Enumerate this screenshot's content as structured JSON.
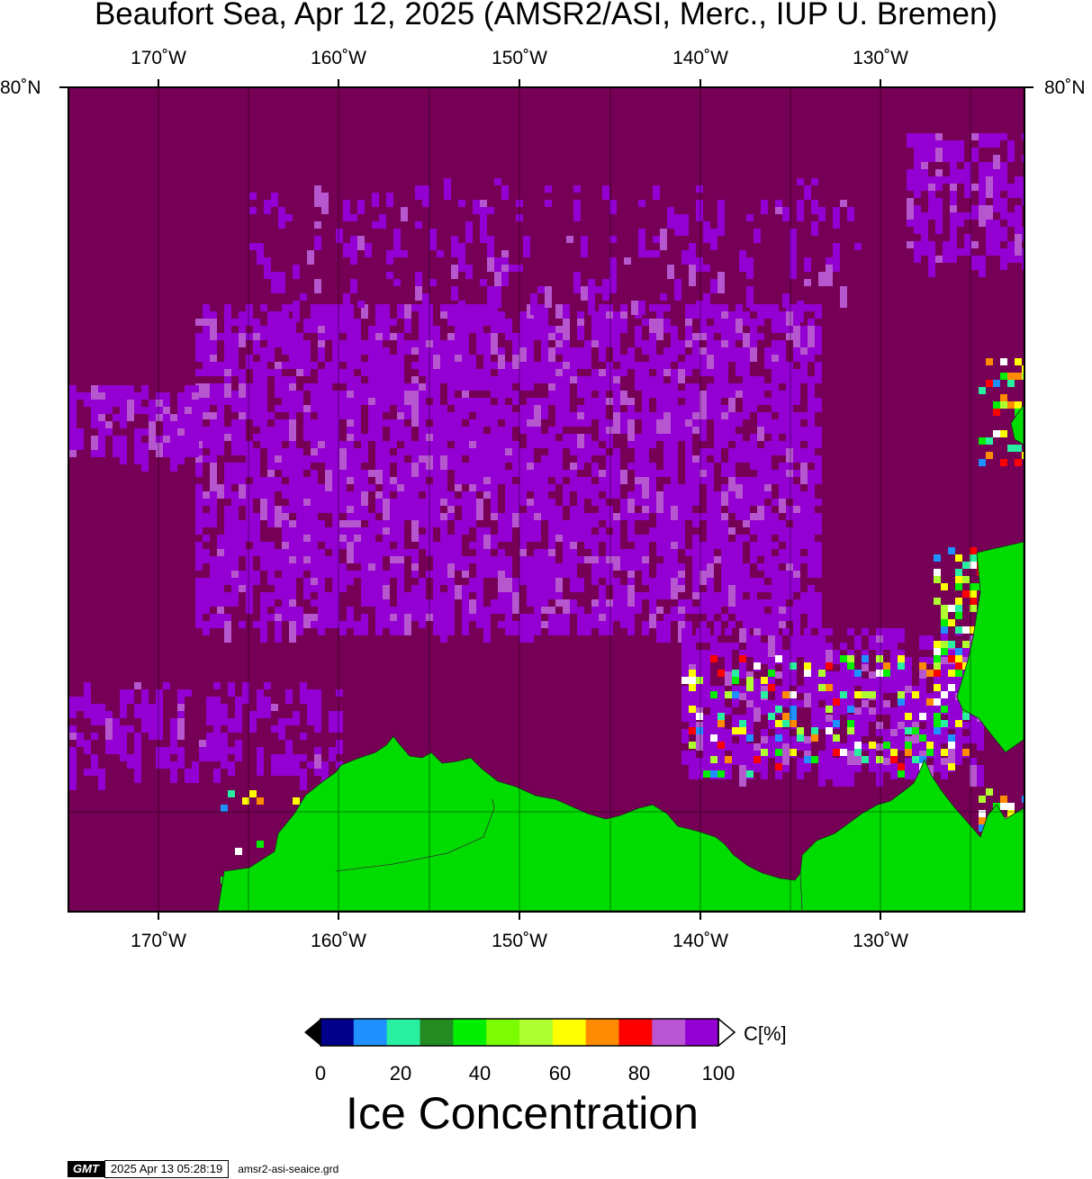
{
  "title": "Beaufort Sea, Apr 12, 2025 (AMSR2/ASI, Merc., IUP U. Bremen)",
  "map": {
    "lon_labels": [
      "170˚W",
      "160˚W",
      "150˚W",
      "140˚W",
      "130˚W"
    ],
    "lat_label": "80˚N",
    "colors": {
      "ocean_full_ice": "#760055",
      "ice_purple": "#9400d3",
      "ice_light_purple": "#b657d0",
      "land": "#00dc00",
      "coast": "#333333"
    }
  },
  "colorbar": {
    "ticks": [
      "0",
      "20",
      "40",
      "60",
      "80",
      "100"
    ],
    "unit": "C[%]",
    "title": "Ice Concentration",
    "colors": [
      "#00008b",
      "#1e90ff",
      "#28f0a0",
      "#228b22",
      "#00ee00",
      "#7cfc00",
      "#adff2f",
      "#ffff00",
      "#ff8c00",
      "#ff0000",
      "#ba55d3",
      "#9400d3"
    ],
    "under_color": "#000000",
    "over_color": "#ffffff"
  },
  "footer": {
    "logo": "GMT",
    "timestamp": "2025 Apr 13 05:28:19",
    "grid_file": "amsr2-asi-seaice.grd"
  }
}
